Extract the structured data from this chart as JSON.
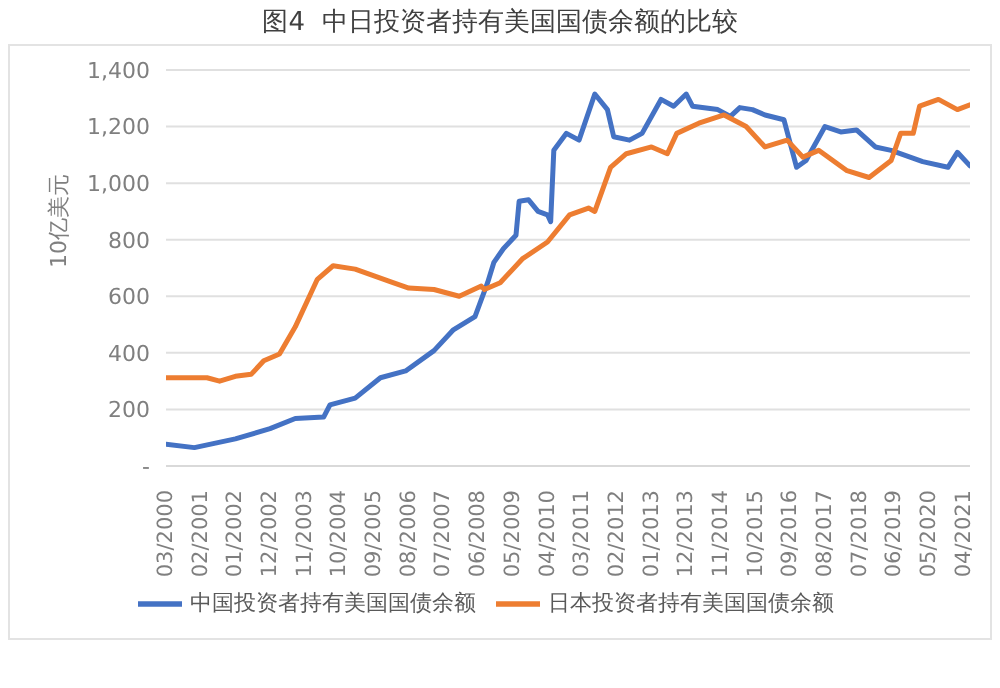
{
  "chart_data": {
    "type": "line",
    "title": "图4  中日投资者持有美国国债余额的比较",
    "ylabel": "10亿美元",
    "xlim": [
      "2000-03",
      "2021-06"
    ],
    "xticks": [
      {
        "value": "2000-03",
        "label": "03/2000"
      },
      {
        "value": "2001-02",
        "label": "02/2001"
      },
      {
        "value": "2002-01",
        "label": "01/2002"
      },
      {
        "value": "2002-12",
        "label": "12/2002"
      },
      {
        "value": "2003-11",
        "label": "11/2003"
      },
      {
        "value": "2004-10",
        "label": "10/2004"
      },
      {
        "value": "2005-09",
        "label": "09/2005"
      },
      {
        "value": "2006-08",
        "label": "08/2006"
      },
      {
        "value": "2007-07",
        "label": "07/2007"
      },
      {
        "value": "2008-06",
        "label": "06/2008"
      },
      {
        "value": "2009-05",
        "label": "05/2009"
      },
      {
        "value": "2010-04",
        "label": "04/2010"
      },
      {
        "value": "2011-03",
        "label": "03/2011"
      },
      {
        "value": "2012-02",
        "label": "02/2012"
      },
      {
        "value": "2013-01",
        "label": "01/2013"
      },
      {
        "value": "2013-12",
        "label": "12/2013"
      },
      {
        "value": "2014-11",
        "label": "11/2014"
      },
      {
        "value": "2015-10",
        "label": "10/2015"
      },
      {
        "value": "2016-09",
        "label": "09/2016"
      },
      {
        "value": "2017-08",
        "label": "08/2017"
      },
      {
        "value": "2018-07",
        "label": "07/2018"
      },
      {
        "value": "2019-06",
        "label": "06/2019"
      },
      {
        "value": "2020-05",
        "label": "05/2020"
      },
      {
        "value": "2021-04",
        "label": "04/2021"
      }
    ],
    "ylim": [
      0,
      1400
    ],
    "yticks": [
      {
        "value": 0,
        "label": "-"
      },
      {
        "value": 200,
        "label": "200"
      },
      {
        "value": 400,
        "label": "400"
      },
      {
        "value": 600,
        "label": "600"
      },
      {
        "value": 800,
        "label": "800"
      },
      {
        "value": 1000,
        "label": "1,000"
      },
      {
        "value": 1200,
        "label": "1,200"
      },
      {
        "value": 1400,
        "label": "1,400"
      }
    ],
    "grid": "y",
    "legend": "bottom",
    "series": [
      {
        "name": "中国投资者持有美国国债余额",
        "color": "#4472c4",
        "x": [
          "2000-03",
          "2000-12",
          "2002-01",
          "2002-12",
          "2003-08",
          "2004-05",
          "2004-07",
          "2005-03",
          "2005-11",
          "2006-07",
          "2007-04",
          "2007-10",
          "2008-05",
          "2008-09",
          "2008-11",
          "2009-02",
          "2009-06",
          "2009-07",
          "2009-10",
          "2010-01",
          "2010-04",
          "2010-05",
          "2010-06",
          "2010-10",
          "2011-02",
          "2011-07",
          "2011-11",
          "2012-01",
          "2012-06",
          "2012-10",
          "2013-04",
          "2013-08",
          "2013-12",
          "2014-02",
          "2014-10",
          "2015-02",
          "2015-05",
          "2015-09",
          "2016-01",
          "2016-07",
          "2016-11",
          "2017-02",
          "2017-08",
          "2018-01",
          "2018-06",
          "2018-12",
          "2019-05",
          "2019-11",
          "2020-03",
          "2020-11",
          "2021-02",
          "2021-06"
        ],
        "values": [
          77,
          65,
          96,
          132,
          168,
          173,
          216,
          240,
          312,
          336,
          408,
          480,
          528,
          648,
          720,
          768,
          816,
          936,
          941,
          900,
          888,
          864,
          1116,
          1176,
          1152,
          1315,
          1260,
          1164,
          1152,
          1176,
          1296,
          1272,
          1315,
          1272,
          1260,
          1236,
          1267,
          1260,
          1241,
          1224,
          1056,
          1080,
          1200,
          1181,
          1188,
          1128,
          1116,
          1092,
          1076,
          1056,
          1109,
          1061
        ]
      },
      {
        "name": "日本投资者持有美国国债余额",
        "color": "#ed7d31",
        "x": [
          "2000-03",
          "2001-04",
          "2001-08",
          "2002-01",
          "2002-06",
          "2002-10",
          "2003-03",
          "2003-08",
          "2004-03",
          "2004-08",
          "2005-03",
          "2005-09",
          "2006-03",
          "2006-08",
          "2007-04",
          "2007-12",
          "2008-07",
          "2008-08",
          "2009-01",
          "2009-08",
          "2010-04",
          "2010-11",
          "2011-05",
          "2011-07",
          "2011-12",
          "2012-05",
          "2013-01",
          "2013-06",
          "2013-09",
          "2014-04",
          "2014-12",
          "2015-07",
          "2016-01",
          "2016-08",
          "2017-01",
          "2017-06",
          "2018-03",
          "2018-10",
          "2019-05",
          "2019-08",
          "2019-12",
          "2020-02",
          "2020-08",
          "2021-02",
          "2021-06"
        ],
        "values": [
          312,
          312,
          300,
          317,
          324,
          372,
          396,
          492,
          660,
          708,
          696,
          672,
          648,
          629,
          624,
          600,
          636,
          624,
          648,
          732,
          792,
          888,
          912,
          900,
          1056,
          1104,
          1128,
          1104,
          1176,
          1212,
          1241,
          1200,
          1128,
          1152,
          1092,
          1116,
          1044,
          1020,
          1080,
          1176,
          1176,
          1272,
          1296,
          1260,
          1277
        ]
      }
    ]
  }
}
